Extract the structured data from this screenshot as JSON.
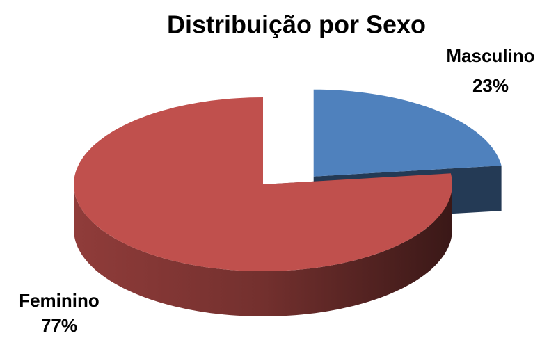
{
  "chart_data": {
    "type": "pie",
    "title": "Distribuição por Sexo",
    "categories": [
      "Masculino",
      "Feminino"
    ],
    "values": [
      23,
      77
    ],
    "value_labels": [
      "23%",
      "77%"
    ],
    "colors": [
      "#4f81bd",
      "#c0504d"
    ]
  }
}
